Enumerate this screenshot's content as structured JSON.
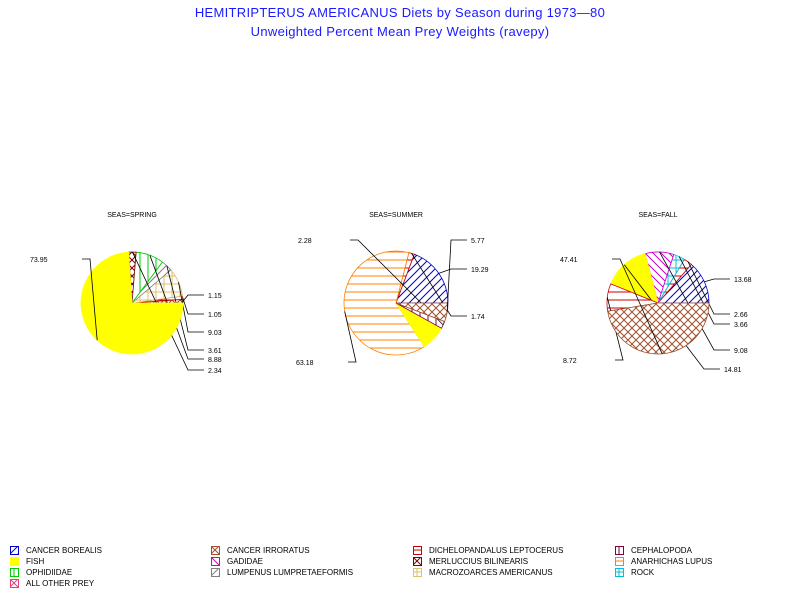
{
  "title": "HEMITRIPTERUS AMERICANUS Diets by Season during 1973—80",
  "subtitle": "Unweighted Percent Mean Prey Weights (ravepy)",
  "categories": [
    {
      "key": "cancer_borealis",
      "label": "CANCER BOREALIS",
      "color": "#0000cc",
      "pattern": "diag-up"
    },
    {
      "key": "cancer_irroratus",
      "label": "CANCER IRRORATUS",
      "color": "#a0522d",
      "pattern": "cross"
    },
    {
      "key": "dichelopandalus",
      "label": "DICHELOPANDALUS LEPTOCERUS",
      "color": "#cc0000",
      "pattern": "horiz"
    },
    {
      "key": "cephalopoda",
      "label": "CEPHALOPODA",
      "color": "#800040",
      "pattern": "vert"
    },
    {
      "key": "fish",
      "label": "FISH",
      "color": "#ffff00",
      "pattern": "solid"
    },
    {
      "key": "gadidae",
      "label": "GADIDAE",
      "color": "#cc00cc",
      "pattern": "diag-down"
    },
    {
      "key": "merluccius",
      "label": "MERLUCCIUS BILINEARIS",
      "color": "#800000",
      "pattern": "cross"
    },
    {
      "key": "anarhichas",
      "label": "ANARHICHAS LUPUS",
      "color": "#ff8000",
      "pattern": "horiz"
    },
    {
      "key": "ophidiidae",
      "label": "OPHIDIIDAE",
      "color": "#00cc00",
      "pattern": "vert"
    },
    {
      "key": "lumpenus",
      "label": "LUMPENUS LUMPRETAEFORMIS",
      "color": "#808080",
      "pattern": "diag-up"
    },
    {
      "key": "macrozoarces",
      "label": "MACROZOARCES AMERICANUS",
      "color": "#e0c070",
      "pattern": "grid"
    },
    {
      "key": "rock",
      "label": "ROCK",
      "color": "#00c0e0",
      "pattern": "grid"
    },
    {
      "key": "other",
      "label": "ALL OTHER PREY",
      "color": "#e04080",
      "pattern": "cross"
    }
  ],
  "chart_data": [
    {
      "type": "pie",
      "title": "SEAS=SPRING",
      "slices": [
        {
          "category": "cancer_irroratus",
          "value": 1.15,
          "label": "1.15"
        },
        {
          "category": "dichelopandalus",
          "value": 1.05,
          "label": "1.05"
        },
        {
          "category": "macrozoarces",
          "value": 9.03,
          "label": "9.03"
        },
        {
          "category": "lumpenus",
          "value": 3.61,
          "label": "3.61"
        },
        {
          "category": "ophidiidae",
          "value": 8.88,
          "label": "8.88"
        },
        {
          "category": "merluccius",
          "value": 2.34,
          "label": "2.34"
        },
        {
          "category": "fish",
          "value": 73.95,
          "label": "73.95"
        }
      ]
    },
    {
      "type": "pie",
      "title": "SEAS=SUMMER",
      "slices": [
        {
          "category": "cancer_borealis",
          "value": 19.29,
          "label": "19.29"
        },
        {
          "category": "dichelopandalus",
          "value": 1.74,
          "label": "1.74"
        },
        {
          "category": "anarhichas",
          "value": 63.18,
          "label": "63.18"
        },
        {
          "category": "fish",
          "value": 7.74,
          "label": ""
        },
        {
          "category": "cephalopoda",
          "value": 2.28,
          "label": "2.28"
        },
        {
          "category": "cancer_irroratus",
          "value": 5.77,
          "label": "5.77"
        }
      ]
    },
    {
      "type": "pie",
      "title": "SEAS=FALL",
      "slices": [
        {
          "category": "cancer_borealis",
          "value": 13.68,
          "label": "13.68"
        },
        {
          "category": "dichelopandalus",
          "value": 2.66,
          "label": "2.66"
        },
        {
          "category": "rock",
          "value": 3.66,
          "label": "3.66"
        },
        {
          "category": "gadidae",
          "value": 9.08,
          "label": "9.08"
        },
        {
          "category": "fish",
          "value": 14.81,
          "label": "14.81"
        },
        {
          "category": "dichelopandalus",
          "value": 8.72,
          "label": "8.72"
        },
        {
          "category": "cancer_irroratus",
          "value": 47.41,
          "label": "47.41"
        }
      ]
    }
  ]
}
